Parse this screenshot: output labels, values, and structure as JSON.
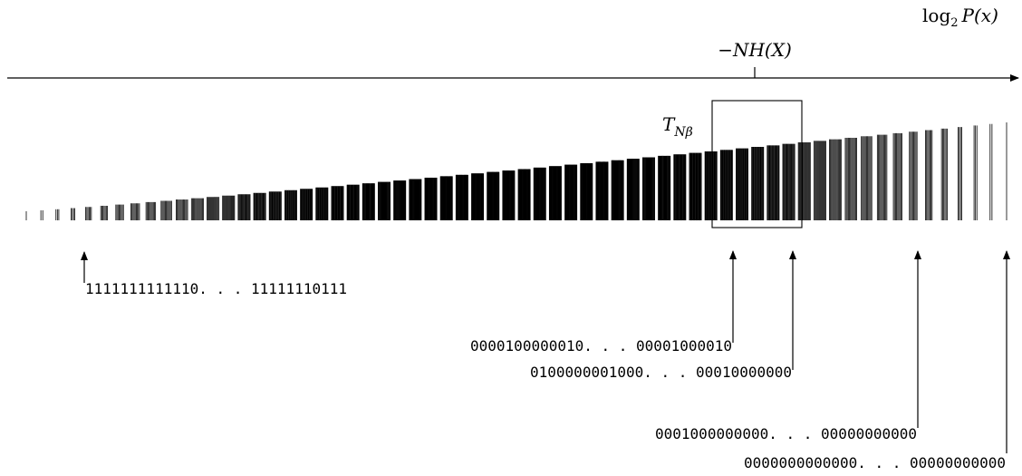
{
  "axis": {
    "label_prefix": "log",
    "label_subscript": "2",
    "label_main": "P(x)"
  },
  "marker": {
    "label": "−NH(X)"
  },
  "typical_set": {
    "label_main": "T",
    "label_subscript": "Nβ"
  },
  "bar_groups": [
    1,
    2,
    3,
    4,
    5,
    6,
    7,
    8,
    9,
    10,
    11,
    12,
    13,
    14,
    15,
    16,
    17,
    18,
    19,
    20,
    21,
    22,
    23,
    24,
    25,
    26,
    27,
    28,
    29,
    30,
    31,
    32,
    33,
    34,
    35,
    36,
    37,
    38,
    39,
    40,
    41,
    42,
    43,
    44,
    45,
    46,
    47,
    48,
    49,
    50,
    51,
    52,
    53,
    54,
    55,
    56,
    57,
    58,
    59,
    60,
    61,
    62,
    63,
    64
  ],
  "strings": [
    {
      "text": "1111111111110. . . 11111110111"
    },
    {
      "text": "0000100000010. . . 00001000010"
    },
    {
      "text": "0100000001000. . . 00010000000"
    },
    {
      "text": "0001000000000. . . 00000000000"
    },
    {
      "text": "0000000000000. . . 00000000000"
    }
  ]
}
